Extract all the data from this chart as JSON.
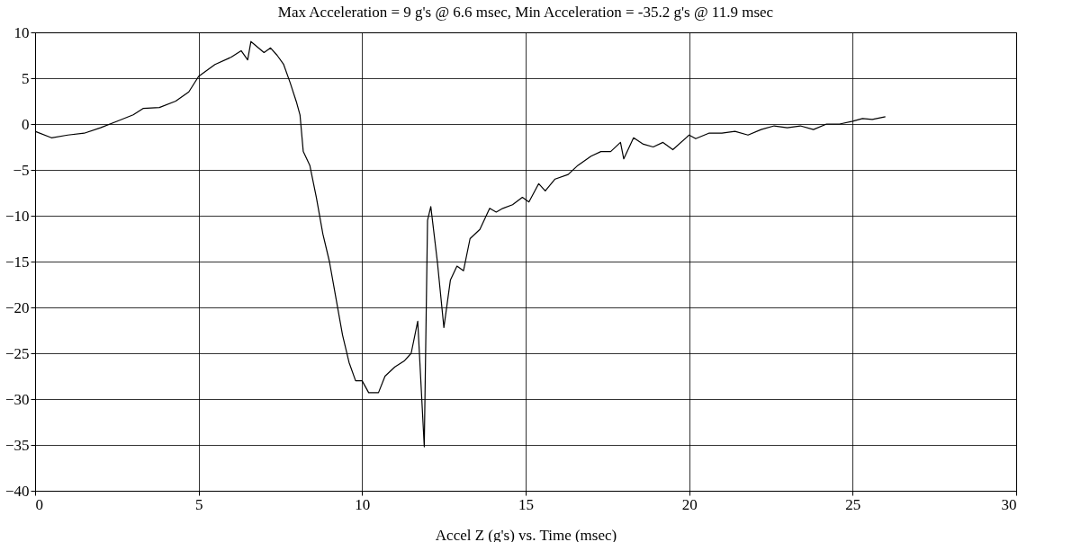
{
  "chart_data": {
    "type": "line",
    "title": "Max Acceleration = 9 g's @  6.6 msec, Min Acceleration = -35.2 g's @  11.9 msec",
    "xlabel": "Accel Z (g's) vs. Time (msec)",
    "x": [
      0,
      0.5,
      1,
      1.5,
      2,
      2.5,
      3,
      3.3,
      3.8,
      4.3,
      4.7,
      5,
      5.5,
      6,
      6.3,
      6.5,
      6.6,
      7.0,
      7.2,
      7.4,
      7.6,
      7.8,
      8.0,
      8.1,
      8.2,
      8.4,
      8.6,
      8.8,
      9.0,
      9.2,
      9.4,
      9.6,
      9.8,
      10.0,
      10.2,
      10.5,
      10.7,
      11,
      11.3,
      11.5,
      11.7,
      11.9,
      12.0,
      12.1,
      12.3,
      12.5,
      12.7,
      12.9,
      13.1,
      13.3,
      13.6,
      13.9,
      14.1,
      14.3,
      14.6,
      14.9,
      15.1,
      15.4,
      15.6,
      15.9,
      16.3,
      16.6,
      17,
      17.3,
      17.6,
      17.9,
      18.0,
      18.3,
      18.6,
      18.9,
      19.2,
      19.5,
      20,
      20.2,
      20.6,
      21,
      21.4,
      21.8,
      22.2,
      22.6,
      23,
      23.4,
      23.8,
      24.2,
      24.6,
      25,
      25.3,
      25.6,
      26
    ],
    "series": [
      {
        "color": "#000000",
        "values": [
          -0.8,
          -1.5,
          -1.2,
          -1.0,
          -0.4,
          0.3,
          1.0,
          1.7,
          1.8,
          2.5,
          3.5,
          5.2,
          6.5,
          7.3,
          8.0,
          7.0,
          9.0,
          7.8,
          8.3,
          7.5,
          6.5,
          4.5,
          2.3,
          1.0,
          -3,
          -4.5,
          -8,
          -12,
          -15,
          -19,
          -23,
          -26,
          -28,
          -28,
          -29.3,
          -29.3,
          -27.5,
          -26.5,
          -25.8,
          -25,
          -21.5,
          -35.2,
          -10.5,
          -9.0,
          -15,
          -22.2,
          -17,
          -15.5,
          -16,
          -12.5,
          -11.5,
          -9.2,
          -9.6,
          -9.2,
          -8.8,
          -8.0,
          -8.5,
          -6.5,
          -7.3,
          -6,
          -5.5,
          -4.5,
          -3.5,
          -3.0,
          -3.0,
          -2.0,
          -3.8,
          -1.5,
          -2.2,
          -2.5,
          -2.0,
          -2.8,
          -1.2,
          -1.6,
          -1.0,
          -1.0,
          -0.8,
          -1.2,
          -0.6,
          -0.2,
          -0.4,
          -0.2,
          -0.6,
          0.0,
          0.0,
          0.3,
          0.6,
          0.5,
          0.8
        ]
      }
    ],
    "xlim": [
      0,
      30
    ],
    "xticks": [
      0,
      5,
      10,
      15,
      20,
      25,
      30
    ],
    "ylim": [
      -40,
      10
    ],
    "yticks": [
      -40,
      -35,
      -30,
      -25,
      -20,
      -15,
      -10,
      -5,
      0,
      5,
      10
    ],
    "grid": true,
    "legend": false,
    "marker": "none",
    "line_style": "solid"
  }
}
